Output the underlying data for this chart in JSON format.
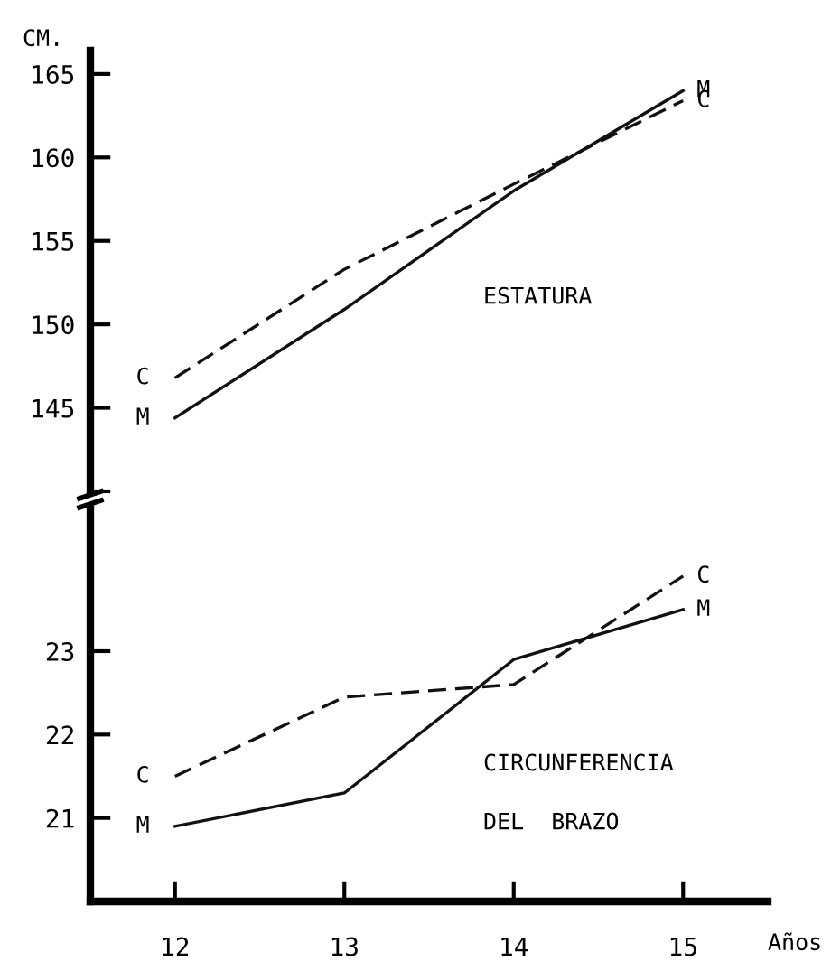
{
  "chart_data": [
    {
      "type": "line",
      "ylabel": "CM.",
      "x": [
        12,
        13,
        14,
        15
      ],
      "ylim": [
        140,
        166.4
      ],
      "yticks": [
        {
          "value": 140,
          "label": null
        },
        145,
        150,
        155,
        160,
        165
      ],
      "tick_labels": "y",
      "grid": false,
      "legend": false,
      "marker": "none",
      "annotations": [
        "ESTATURA"
      ],
      "series": [
        {
          "name": "C",
          "color": "#111111",
          "line_style": "dashed",
          "values": [
            146.8,
            153.3,
            158.4,
            163.4
          ]
        },
        {
          "name": "M",
          "color": "#111111",
          "line_style": "solid",
          "values": [
            144.4,
            150.9,
            158.0,
            164.0
          ]
        }
      ]
    },
    {
      "type": "line",
      "xlabel": "Años",
      "x": [
        12,
        13,
        14,
        15
      ],
      "xlim": [
        11.5,
        15.5
      ],
      "xticks": [
        12,
        13,
        14,
        15
      ],
      "ylim": [
        20,
        24.7
      ],
      "yticks": [
        21,
        22,
        23
      ],
      "grid": false,
      "legend": false,
      "marker": "none",
      "annotations": [
        "CIRCUNFERENCIA",
        "DEL  BRAZO"
      ],
      "series": [
        {
          "name": "C",
          "color": "#111111",
          "line_style": "dashed",
          "values": [
            21.5,
            22.45,
            22.6,
            23.9
          ]
        },
        {
          "name": "M",
          "color": "#111111",
          "line_style": "solid",
          "values": [
            20.9,
            21.3,
            22.9,
            23.5
          ]
        }
      ]
    }
  ]
}
